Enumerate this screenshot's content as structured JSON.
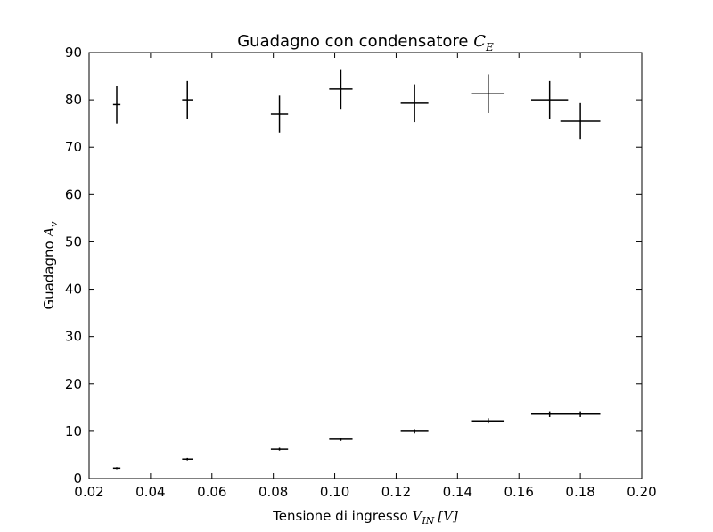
{
  "chart_data": {
    "type": "scatter",
    "title_text": "Guadagno con condensatore ",
    "title_math": "C",
    "title_sub": "E",
    "xlabel_text": "Tensione di ingresso ",
    "xlabel_math": "V",
    "xlabel_sub": "IN",
    "xlabel_unit": "[V]",
    "ylabel_text": "Guadagno ",
    "ylabel_math": "A",
    "ylabel_sub": "v",
    "xlim": [
      0.02,
      0.2
    ],
    "ylim": [
      0,
      90
    ],
    "xticks": [
      "0.02",
      "0.04",
      "0.06",
      "0.08",
      "0.10",
      "0.12",
      "0.14",
      "0.16",
      "0.18",
      "0.20"
    ],
    "yticks": [
      "0",
      "10",
      "20",
      "30",
      "40",
      "50",
      "60",
      "70",
      "80",
      "90"
    ],
    "grid": false,
    "series": [
      {
        "points": [
          {
            "x": 0.029,
            "y": 79.0,
            "xerr": 0.0012,
            "yerr": 4.0
          },
          {
            "x": 0.052,
            "y": 80.0,
            "xerr": 0.0017,
            "yerr": 4.0
          },
          {
            "x": 0.082,
            "y": 77.0,
            "xerr": 0.0028,
            "yerr": 3.9
          },
          {
            "x": 0.102,
            "y": 82.3,
            "xerr": 0.0038,
            "yerr": 4.2
          },
          {
            "x": 0.126,
            "y": 79.3,
            "xerr": 0.0045,
            "yerr": 4.0
          },
          {
            "x": 0.15,
            "y": 81.3,
            "xerr": 0.0053,
            "yerr": 4.1
          },
          {
            "x": 0.17,
            "y": 80.0,
            "xerr": 0.006,
            "yerr": 4.0
          },
          {
            "x": 0.18,
            "y": 75.5,
            "xerr": 0.0065,
            "yerr": 3.8
          }
        ]
      },
      {
        "points": [
          {
            "x": 0.029,
            "y": 2.2,
            "xerr": 0.0012,
            "yerr": 0.2
          },
          {
            "x": 0.052,
            "y": 4.1,
            "xerr": 0.0017,
            "yerr": 0.25
          },
          {
            "x": 0.082,
            "y": 6.2,
            "xerr": 0.0028,
            "yerr": 0.3
          },
          {
            "x": 0.102,
            "y": 8.3,
            "xerr": 0.0038,
            "yerr": 0.35
          },
          {
            "x": 0.126,
            "y": 10.0,
            "xerr": 0.0045,
            "yerr": 0.45
          },
          {
            "x": 0.15,
            "y": 12.2,
            "xerr": 0.0053,
            "yerr": 0.55
          },
          {
            "x": 0.17,
            "y": 13.6,
            "xerr": 0.006,
            "yerr": 0.6
          },
          {
            "x": 0.18,
            "y": 13.6,
            "xerr": 0.0065,
            "yerr": 0.6
          }
        ]
      }
    ]
  }
}
